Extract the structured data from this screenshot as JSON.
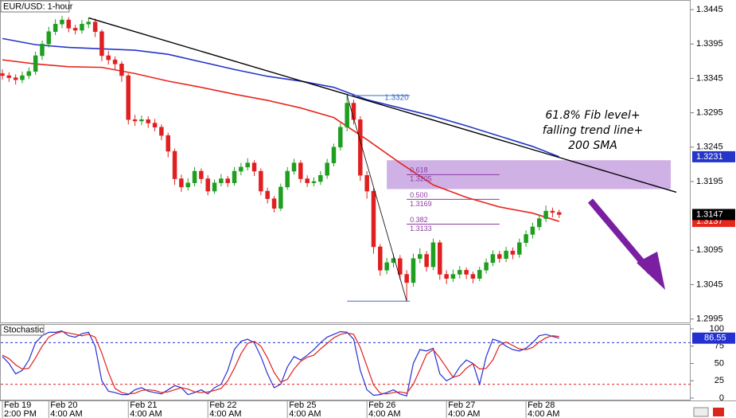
{
  "chart_data": [
    {
      "type": "candlestick",
      "title": "EUR/USD: 1-hour",
      "x": [
        "Feb 19 2:00 PM",
        "Feb 19 4:00 PM",
        "Feb 19 6:00 PM",
        "Feb 19 8:00 PM",
        "Feb 19 10:00 PM",
        "Feb 20 12:00 AM",
        "Feb 20 2:00 AM",
        "Feb 20 4:00 AM",
        "Feb 20 6:00 AM",
        "Feb 20 8:00 AM",
        "Feb 20 10:00 AM",
        "Feb 20 12:00 PM",
        "Feb 20 2:00 PM",
        "Feb 20 4:00 PM",
        "Feb 20 6:00 PM",
        "Feb 20 8:00 PM",
        "Feb 20 10:00 PM",
        "Feb 21 12:00 AM",
        "Feb 21 2:00 AM",
        "Feb 21 4:00 AM",
        "Feb 21 6:00 AM",
        "Feb 21 8:00 AM",
        "Feb 21 10:00 AM",
        "Feb 21 12:00 PM",
        "Feb 21 2:00 PM",
        "Feb 21 4:00 PM",
        "Feb 21 6:00 PM",
        "Feb 21 8:00 PM",
        "Feb 21 10:00 PM",
        "Feb 22 12:00 AM",
        "Feb 22 2:00 AM",
        "Feb 22 4:00 AM",
        "Feb 22 6:00 AM",
        "Feb 22 8:00 AM",
        "Feb 22 10:00 AM",
        "Feb 22 12:00 PM",
        "Feb 22 2:00 PM",
        "Feb 22 4:00 PM",
        "Feb 22 6:00 PM",
        "Feb 22 8:00 PM",
        "Feb 24 10:00 PM",
        "Feb 25 12:00 AM",
        "Feb 25 2:00 AM",
        "Feb 25 4:00 AM",
        "Feb 25 6:00 AM",
        "Feb 25 8:00 AM",
        "Feb 25 10:00 AM",
        "Feb 25 12:00 PM",
        "Feb 25 2:00 PM",
        "Feb 25 4:00 PM",
        "Feb 25 6:00 PM",
        "Feb 25 8:00 PM",
        "Feb 25 10:00 PM",
        "Feb 26 12:00 AM",
        "Feb 26 2:00 AM",
        "Feb 26 4:00 AM",
        "Feb 26 6:00 AM",
        "Feb 26 8:00 AM",
        "Feb 26 10:00 AM",
        "Feb 26 12:00 PM",
        "Feb 26 2:00 PM",
        "Feb 26 4:00 PM",
        "Feb 26 6:00 PM",
        "Feb 26 8:00 PM",
        "Feb 26 10:00 PM",
        "Feb 27 12:00 AM",
        "Feb 27 2:00 AM",
        "Feb 27 4:00 AM",
        "Feb 27 6:00 AM",
        "Feb 27 8:00 AM",
        "Feb 27 10:00 AM",
        "Feb 27 12:00 PM",
        "Feb 27 2:00 PM",
        "Feb 27 4:00 PM",
        "Feb 27 6:00 PM",
        "Feb 27 8:00 PM",
        "Feb 27 10:00 PM",
        "Feb 28 12:00 AM",
        "Feb 28 2:00 AM",
        "Feb 28 4:00 AM",
        "Feb 28 6:00 AM",
        "Feb 28 8:00 AM",
        "Feb 28 10:00 AM",
        "Feb 28 12:00 PM",
        "Feb 28 2:00 PM"
      ],
      "open": [
        1.3352,
        1.3349,
        1.3346,
        1.3343,
        1.3349,
        1.3355,
        1.3378,
        1.3395,
        1.3413,
        1.3424,
        1.343,
        1.3418,
        1.3415,
        1.3424,
        1.3427,
        1.3413,
        1.3378,
        1.3372,
        1.3366,
        1.3349,
        1.3285,
        1.3283,
        1.3285,
        1.328,
        1.3274,
        1.3262,
        1.3239,
        1.3199,
        1.3187,
        1.3193,
        1.321,
        1.3199,
        1.3181,
        1.3193,
        1.3199,
        1.3193,
        1.321,
        1.3216,
        1.3222,
        1.321,
        1.3181,
        1.317,
        1.3156,
        1.3187,
        1.321,
        1.3222,
        1.3199,
        1.3193,
        1.3195,
        1.3204,
        1.3222,
        1.3245,
        1.3274,
        1.3309,
        1.3285,
        1.3204,
        1.3181,
        1.31,
        1.3066,
        1.3077,
        1.3083,
        1.306,
        1.3048,
        1.3083,
        1.3089,
        1.3071,
        1.3106,
        1.306,
        1.3054,
        1.306,
        1.3066,
        1.306,
        1.3054,
        1.3066,
        1.3077,
        1.3089,
        1.3083,
        1.3094,
        1.3089,
        1.3106,
        1.3118,
        1.3129,
        1.3141,
        1.3152,
        1.315
      ],
      "high": [
        1.3358,
        1.3354,
        1.3351,
        1.3355,
        1.3361,
        1.3384,
        1.34,
        1.342,
        1.3431,
        1.3436,
        1.3434,
        1.3423,
        1.343,
        1.3433,
        1.3432,
        1.3416,
        1.3385,
        1.3377,
        1.337,
        1.3352,
        1.3292,
        1.3291,
        1.329,
        1.3286,
        1.3278,
        1.3266,
        1.3243,
        1.3205,
        1.32,
        1.3216,
        1.3214,
        1.3204,
        1.3198,
        1.3206,
        1.3203,
        1.3216,
        1.3222,
        1.3229,
        1.3226,
        1.3214,
        1.3186,
        1.3174,
        1.3192,
        1.3216,
        1.3228,
        1.3226,
        1.3204,
        1.3201,
        1.321,
        1.3228,
        1.325,
        1.328,
        1.332,
        1.3314,
        1.329,
        1.321,
        1.3185,
        1.3104,
        1.3084,
        1.309,
        1.3088,
        1.3066,
        1.309,
        1.3098,
        1.3094,
        1.3112,
        1.311,
        1.3066,
        1.3067,
        1.3072,
        1.307,
        1.3064,
        1.3071,
        1.3083,
        1.3095,
        1.3094,
        1.31,
        1.3099,
        1.3112,
        1.3124,
        1.3135,
        1.3147,
        1.316,
        1.3157,
        1.3154
      ],
      "low": [
        1.3343,
        1.334,
        1.3336,
        1.3338,
        1.3344,
        1.335,
        1.3372,
        1.339,
        1.3408,
        1.3418,
        1.3412,
        1.3409,
        1.341,
        1.3418,
        1.3405,
        1.337,
        1.3365,
        1.3358,
        1.334,
        1.3278,
        1.3276,
        1.3277,
        1.3273,
        1.3268,
        1.3255,
        1.323,
        1.319,
        1.318,
        1.3182,
        1.3188,
        1.3192,
        1.3175,
        1.3177,
        1.3188,
        1.3187,
        1.3189,
        1.3204,
        1.3211,
        1.3203,
        1.3175,
        1.3163,
        1.315,
        1.3152,
        1.3183,
        1.3205,
        1.3193,
        1.3187,
        1.3188,
        1.319,
        1.3199,
        1.3217,
        1.324,
        1.3268,
        1.3278,
        1.3196,
        1.317,
        1.309,
        1.3058,
        1.306,
        1.307,
        1.3052,
        1.3021,
        1.3042,
        1.3076,
        1.3064,
        1.3066,
        1.3052,
        1.3046,
        1.3049,
        1.3054,
        1.3053,
        1.3047,
        1.305,
        1.3061,
        1.3072,
        1.3077,
        1.3078,
        1.3082,
        1.3084,
        1.31,
        1.3112,
        1.3124,
        1.3136,
        1.3143,
        1.3142
      ],
      "close": [
        1.3349,
        1.3346,
        1.3343,
        1.3349,
        1.3355,
        1.3378,
        1.3395,
        1.3413,
        1.3424,
        1.343,
        1.3418,
        1.3415,
        1.3424,
        1.3427,
        1.3413,
        1.3378,
        1.3372,
        1.3366,
        1.3349,
        1.3285,
        1.3283,
        1.3285,
        1.328,
        1.3274,
        1.3262,
        1.3239,
        1.3199,
        1.3187,
        1.3193,
        1.321,
        1.3199,
        1.3181,
        1.3193,
        1.3199,
        1.3193,
        1.321,
        1.3216,
        1.3222,
        1.321,
        1.3181,
        1.317,
        1.3156,
        1.3187,
        1.321,
        1.3222,
        1.3199,
        1.3193,
        1.3195,
        1.3204,
        1.3222,
        1.3245,
        1.3274,
        1.3309,
        1.3285,
        1.3204,
        1.3181,
        1.31,
        1.3066,
        1.3077,
        1.3083,
        1.306,
        1.3048,
        1.3083,
        1.3089,
        1.3071,
        1.3106,
        1.306,
        1.3054,
        1.306,
        1.3066,
        1.306,
        1.3054,
        1.3066,
        1.3077,
        1.3089,
        1.3083,
        1.3094,
        1.3089,
        1.3106,
        1.3118,
        1.3129,
        1.3141,
        1.3152,
        1.315,
        1.3147
      ],
      "up_color": "#1f9e1f",
      "down_color": "#e02020",
      "last_color": "#000000",
      "ylim": [
        1.299,
        1.3459
      ],
      "yticks": [
        1.3445,
        1.3395,
        1.3345,
        1.3295,
        1.3245,
        1.3195,
        1.3095,
        1.3045,
        1.2995
      ],
      "xticks": [
        {
          "value": "Feb 19 2:00 PM",
          "label": [
            "Feb 19",
            "2:00 PM"
          ]
        },
        {
          "value": "Feb 20 4:00 AM",
          "label": [
            "Feb 20",
            "4:00 AM"
          ]
        },
        {
          "value": "Feb 21 4:00 AM",
          "label": [
            "Feb 21",
            "4:00 AM"
          ]
        },
        {
          "value": "Feb 22 4:00 AM",
          "label": [
            "Feb 22",
            "4:00 AM"
          ]
        },
        {
          "value": "Feb 25 4:00 AM",
          "label": [
            "Feb 25",
            "4:00 AM"
          ]
        },
        {
          "value": "Feb 26 4:00 AM",
          "label": [
            "Feb 26",
            "4:00 AM"
          ]
        },
        {
          "value": "Feb 27 4:00 AM",
          "label": [
            "Feb 27",
            "4:00 AM"
          ]
        },
        {
          "value": "Feb 28 4:00 AM",
          "label": [
            "Feb 28",
            "4:00 AM"
          ]
        }
      ],
      "overlays": [
        {
          "color": "#2535c8",
          "x": [
            "Feb 19 2:00 PM",
            "Feb 20 12:00 AM",
            "Feb 20 10:00 AM",
            "Feb 20 8:00 PM",
            "Feb 21 6:00 AM",
            "Feb 21 4:00 PM",
            "Feb 22 2:00 AM",
            "Feb 22 12:00 PM",
            "Feb 24 10:00 PM",
            "Feb 25 8:00 AM",
            "Feb 25 6:00 PM",
            "Feb 26 4:00 AM",
            "Feb 26 2:00 PM",
            "Feb 27 12:00 AM",
            "Feb 27 10:00 AM",
            "Feb 27 8:00 PM",
            "Feb 28 6:00 AM",
            "Feb 28 2:00 PM"
          ],
          "values": [
            1.3403,
            1.3394,
            1.339,
            1.3388,
            1.3386,
            1.338,
            1.3369,
            1.3358,
            1.3348,
            1.3341,
            1.3332,
            1.3314,
            1.3302,
            1.329,
            1.3276,
            1.3261,
            1.3246,
            1.3231
          ]
        },
        {
          "color": "#e8261c",
          "x": [
            "Feb 19 2:00 PM",
            "Feb 20 12:00 AM",
            "Feb 20 10:00 AM",
            "Feb 20 8:00 PM",
            "Feb 21 6:00 AM",
            "Feb 21 4:00 PM",
            "Feb 22 2:00 AM",
            "Feb 22 12:00 PM",
            "Feb 24 10:00 PM",
            "Feb 25 8:00 AM",
            "Feb 25 6:00 PM",
            "Feb 26 4:00 AM",
            "Feb 26 2:00 PM",
            "Feb 27 12:00 AM",
            "Feb 27 10:00 AM",
            "Feb 27 8:00 PM",
            "Feb 28 6:00 AM",
            "Feb 28 2:00 PM"
          ],
          "values": [
            1.3372,
            1.3366,
            1.3362,
            1.3361,
            1.3352,
            1.3341,
            1.3332,
            1.3322,
            1.3313,
            1.3302,
            1.3288,
            1.3256,
            1.3222,
            1.319,
            1.3172,
            1.3158,
            1.3149,
            1.3137
          ]
        }
      ],
      "trendline": {
        "color": "#000000",
        "x": [
          "Feb 20 4:00 PM",
          "Feb 28 2:00 PM"
        ],
        "values": [
          1.3433,
          1.323
        ]
      },
      "zone": {
        "color": "#c8a3e0",
        "x": "Feb 26 10:00 AM",
        "range": [
          1.3184,
          1.3226
        ]
      },
      "fib": {
        "line_color": "#3a6ec8",
        "level_color": "#8b3aa0",
        "x": [
          "Feb 25 10:00 PM",
          "Feb 26 4:00 PM"
        ],
        "high": {
          "value": 1.332,
          "label": "1.3320"
        },
        "low": 1.3021,
        "level_end": "Feb 27 8:00 PM",
        "levels": [
          {
            "ratio": 0.618,
            "price": 1.3205
          },
          {
            "ratio": {
              "value": 0.5,
              "label": "0.500"
            },
            "price": 1.3169
          },
          {
            "ratio": 0.382,
            "price": 1.3133
          }
        ]
      },
      "annotation": [
        "61.8% Fib level+",
        "falling trend line+",
        "200 SMA"
      ],
      "arrow_color": "#7a1fa2"
    },
    {
      "type": "line",
      "title": "Stochastic",
      "series": [
        {
          "color": "#2530d0",
          "values": [
            60,
            50,
            35,
            40,
            55,
            80,
            90,
            95,
            95,
            97,
            90,
            88,
            93,
            95,
            75,
            25,
            10,
            8,
            5,
            5,
            12,
            15,
            10,
            8,
            6,
            12,
            18,
            15,
            5,
            8,
            12,
            6,
            15,
            20,
            40,
            70,
            82,
            85,
            80,
            60,
            35,
            15,
            20,
            45,
            60,
            55,
            62,
            70,
            80,
            88,
            92,
            96,
            95,
            85,
            40,
            12,
            4,
            5,
            8,
            12,
            6,
            3,
            50,
            70,
            68,
            72,
            35,
            25,
            30,
            45,
            55,
            50,
            20,
            60,
            85,
            82,
            75,
            70,
            68,
            72,
            80,
            90,
            92,
            89,
            86.55
          ]
        },
        {
          "color": "#e02020",
          "values": [
            62,
            57,
            48,
            42,
            43,
            58,
            75,
            88,
            93,
            96,
            94,
            92,
            90,
            92,
            88,
            65,
            37,
            14,
            8,
            6,
            7,
            11,
            12,
            11,
            8,
            9,
            12,
            15,
            13,
            9,
            8,
            9,
            11,
            14,
            25,
            43,
            64,
            79,
            82,
            75,
            58,
            37,
            23,
            27,
            42,
            53,
            59,
            62,
            71,
            79,
            87,
            92,
            94,
            92,
            73,
            46,
            19,
            7,
            6,
            8,
            9,
            7,
            20,
            41,
            63,
            70,
            58,
            44,
            30,
            33,
            43,
            50,
            42,
            43,
            55,
            76,
            81,
            76,
            71,
            70,
            73,
            81,
            87,
            90,
            89
          ]
        }
      ],
      "ylim": [
        -2.3,
        106.9
      ],
      "yticks": [
        100,
        75,
        50,
        25,
        0
      ],
      "levels": [
        {
          "value": 80,
          "color": "#2530d0"
        },
        {
          "value": 20,
          "color": "#e02020"
        }
      ]
    }
  ]
}
